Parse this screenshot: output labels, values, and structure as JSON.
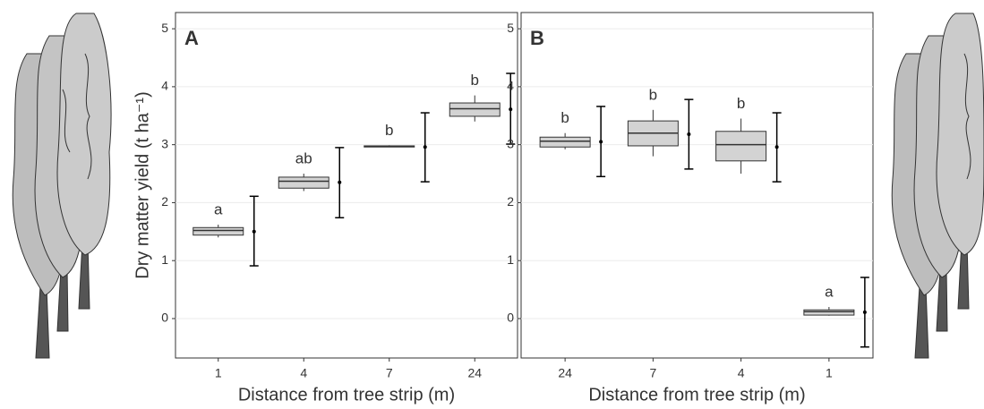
{
  "chart_data": [
    {
      "type": "box",
      "panel_label": "A",
      "y_label": "Dry matter yield (t ha⁻¹)",
      "x_label": "Distance from tree strip (m)",
      "categories": [
        "1",
        "4",
        "7",
        "24"
      ],
      "boxes": [
        {
          "min": 1.4,
          "q1": 1.44,
          "median": 1.52,
          "q3": 1.57,
          "max": 1.62
        },
        {
          "min": 2.2,
          "q1": 2.25,
          "median": 2.37,
          "q3": 2.44,
          "max": 2.5
        },
        {
          "min": 2.96,
          "q1": 2.96,
          "median": 2.97,
          "q3": 2.98,
          "max": 2.99
        },
        {
          "min": 3.4,
          "q1": 3.49,
          "median": 3.62,
          "q3": 3.72,
          "max": 3.85
        }
      ],
      "means": [
        1.5,
        2.35,
        2.96,
        3.61
      ],
      "error_low": [
        0.91,
        1.74,
        2.36,
        3.01
      ],
      "error_high": [
        2.11,
        2.95,
        3.55,
        4.23
      ],
      "letters": [
        "a",
        "ab",
        "b",
        "b"
      ],
      "color": "#d3d3d3",
      "ylim": [
        -0.68,
        5.28
      ],
      "yticks": [
        0,
        1,
        2,
        3,
        4,
        5
      ],
      "grid": true
    },
    {
      "type": "box",
      "panel_label": "B",
      "x_label": "Distance from tree strip (m)",
      "categories": [
        "24",
        "7",
        "4",
        "1"
      ],
      "boxes": [
        {
          "min": 2.92,
          "q1": 2.96,
          "median": 3.06,
          "q3": 3.13,
          "max": 3.2
        },
        {
          "min": 2.8,
          "q1": 2.98,
          "median": 3.2,
          "q3": 3.41,
          "max": 3.6
        },
        {
          "min": 2.5,
          "q1": 2.72,
          "median": 3.0,
          "q3": 3.23,
          "max": 3.45
        },
        {
          "min": 0.05,
          "q1": 0.06,
          "median": 0.12,
          "q3": 0.15,
          "max": 0.2
        }
      ],
      "means": [
        3.05,
        3.18,
        2.96,
        0.11
      ],
      "error_low": [
        2.45,
        2.58,
        2.36,
        -0.49
      ],
      "error_high": [
        3.66,
        3.78,
        3.55,
        0.71
      ],
      "letters": [
        "b",
        "b",
        "b",
        "a"
      ],
      "color": "#d3d3d3",
      "ylim": [
        -0.68,
        5.28
      ],
      "yticks": [
        0,
        1,
        2,
        3,
        4,
        5
      ],
      "grid": true
    }
  ]
}
